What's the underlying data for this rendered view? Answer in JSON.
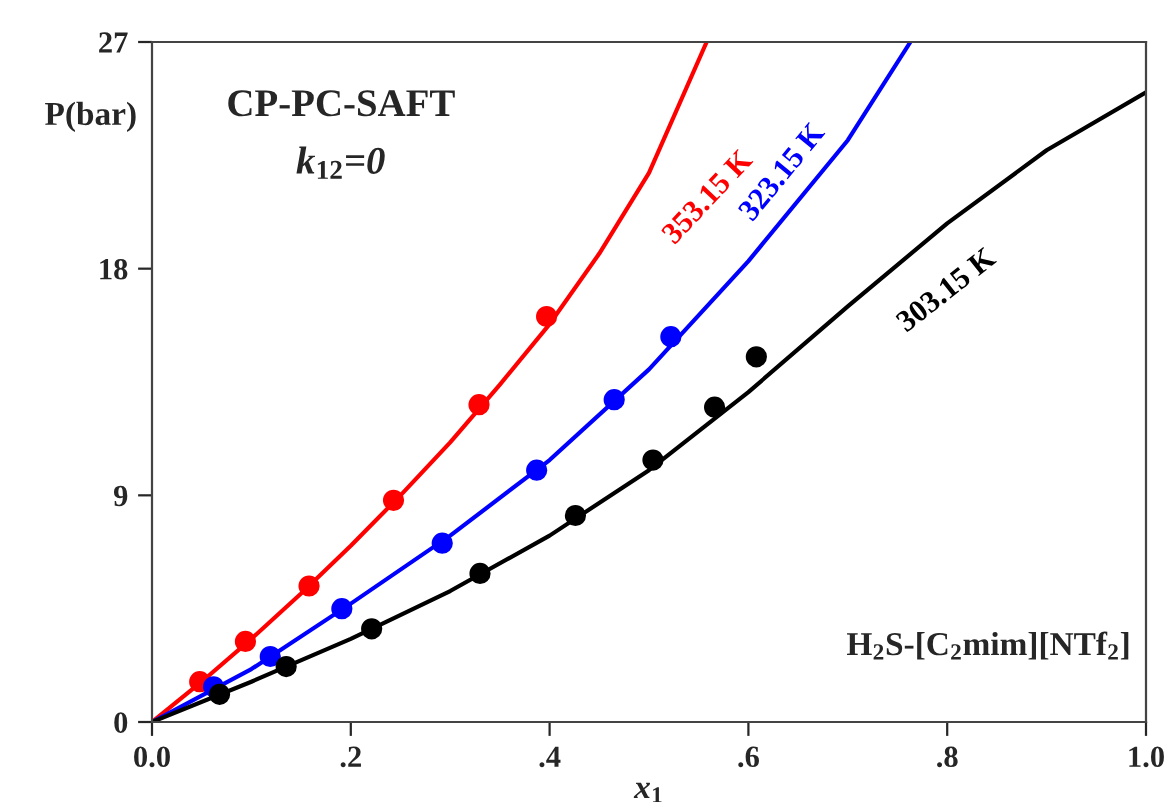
{
  "chart_data": {
    "type": "scatter",
    "title": "CP-PC-SAFT",
    "subtitle": "k$_{12}$=0",
    "xlabel": "x$_{1}$",
    "ylabel": "P(bar)",
    "xlim": [
      0.0,
      1.0
    ],
    "ylim": [
      0,
      27
    ],
    "xticks": [
      {
        "value": 0.0,
        "label": "0.0"
      },
      {
        "value": 0.2,
        "label": ".2"
      },
      {
        "value": 0.4,
        "label": ".4"
      },
      {
        "value": 0.6,
        "label": ".6"
      },
      {
        "value": 0.8,
        "label": ".8"
      },
      {
        "value": 1.0,
        "label": "1.0"
      }
    ],
    "yticks": [
      0,
      9,
      18,
      27
    ],
    "grid": false,
    "legend": false,
    "marker": "circle",
    "series": [
      {
        "type": "line",
        "marker": "none",
        "name": "353.15 K",
        "color": "#ff0000",
        "x": [
          0,
          0.05,
          0.1,
          0.15,
          0.2,
          0.25,
          0.3,
          0.35,
          0.4,
          0.45,
          0.5,
          0.558
        ],
        "values": [
          0,
          1.6,
          3.3,
          5.1,
          7.0,
          9.0,
          11.1,
          13.4,
          15.8,
          18.6,
          21.8,
          27
        ]
      },
      {
        "type": "line",
        "marker": "none",
        "name": "323.15 K",
        "color": "#0000ff",
        "x": [
          0,
          0.1,
          0.2,
          0.3,
          0.4,
          0.5,
          0.6,
          0.7,
          0.763
        ],
        "values": [
          0,
          2.1,
          4.7,
          7.4,
          10.4,
          14.0,
          18.3,
          23.1,
          27
        ]
      },
      {
        "type": "line",
        "marker": "none",
        "name": "303.15 K",
        "color": "#000000",
        "x": [
          0,
          0.1,
          0.2,
          0.3,
          0.4,
          0.5,
          0.6,
          0.7,
          0.8,
          0.9,
          1.0
        ],
        "values": [
          0,
          1.6,
          3.3,
          5.2,
          7.4,
          10.0,
          13.1,
          16.5,
          19.8,
          22.7,
          25.0
        ]
      },
      {
        "color": "#ff0000",
        "x": [
          0.048,
          0.094,
          0.158,
          0.243,
          0.329,
          0.397
        ],
        "values": [
          1.6,
          3.2,
          5.4,
          8.8,
          12.6,
          16.1
        ]
      },
      {
        "color": "#0000ff",
        "x": [
          0.062,
          0.119,
          0.191,
          0.292,
          0.387,
          0.465,
          0.522
        ],
        "values": [
          1.4,
          2.6,
          4.5,
          7.1,
          10.0,
          12.8,
          15.3
        ]
      },
      {
        "color": "#000000",
        "x": [
          0.068,
          0.135,
          0.221,
          0.33,
          0.426,
          0.504,
          0.566,
          0.608
        ],
        "values": [
          1.1,
          2.2,
          3.7,
          5.9,
          8.2,
          10.4,
          12.5,
          14.5
        ]
      }
    ],
    "annotations": [
      "H$_{2}$S-[C$_{2}$mim][NTf$_{2}$]"
    ]
  }
}
